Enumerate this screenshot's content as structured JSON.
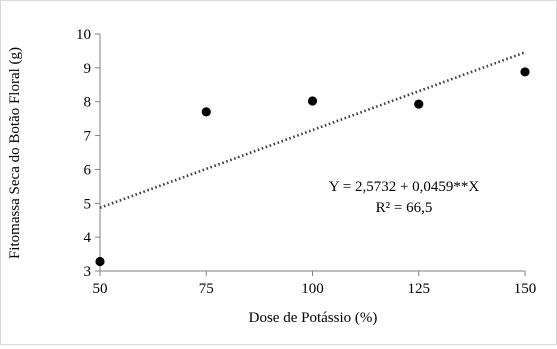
{
  "chart_data": {
    "type": "scatter",
    "title": "",
    "xlabel": "Dose de Potássio (%)",
    "ylabel": "Fitomassa Seca do Botão Floral (g)",
    "xlim": [
      50,
      150
    ],
    "ylim": [
      3,
      10
    ],
    "x_ticks": [
      "50",
      "75",
      "100",
      "125",
      "150"
    ],
    "y_ticks": [
      "3",
      "4",
      "5",
      "6",
      "7",
      "8",
      "9",
      "10"
    ],
    "grid": false,
    "legend": "none",
    "points": [
      {
        "x": 50,
        "y": 3.28
      },
      {
        "x": 75,
        "y": 7.7
      },
      {
        "x": 100,
        "y": 8.02
      },
      {
        "x": 125,
        "y": 7.93
      },
      {
        "x": 150,
        "y": 8.88
      }
    ],
    "trendline": {
      "type": "linear",
      "intercept": 2.5732,
      "slope": 0.0459,
      "style": "dotted"
    },
    "annotations": {
      "equation": "Y = 2,5732 + 0,0459**X",
      "r_squared": "R² = 66,5"
    },
    "colors": {
      "points": "#000000",
      "trendline": "#404040",
      "axis": "#808080"
    }
  }
}
